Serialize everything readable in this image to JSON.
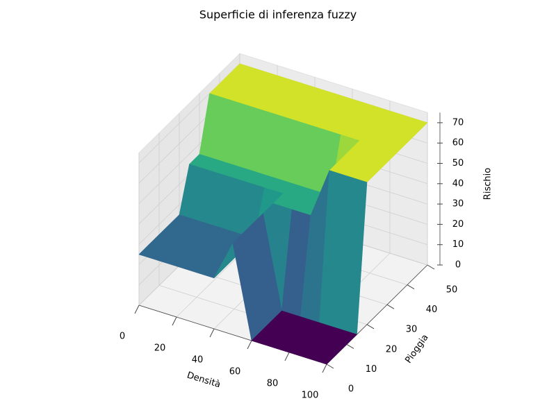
{
  "chart_data": {
    "type": "surface",
    "title": "Superficie di inferenza fuzzy",
    "xlabel": "Densità",
    "ylabel": "Pioggia",
    "zlabel": "Rischio",
    "colormap": "viridis",
    "x": [
      0,
      10,
      20,
      30,
      40,
      50,
      60,
      70,
      80,
      90,
      100
    ],
    "y": [
      0,
      5,
      10,
      15,
      20,
      25,
      30,
      35,
      40,
      45,
      50
    ],
    "z": [
      [
        25,
        25,
        25,
        25,
        25,
        45,
        0,
        0,
        0,
        0,
        0
      ],
      [
        25,
        25,
        25,
        25,
        25,
        45,
        0,
        0,
        0,
        0,
        0
      ],
      [
        25,
        25,
        25,
        25,
        25,
        45,
        0,
        0,
        0,
        0,
        0
      ],
      [
        25,
        25,
        25,
        25,
        25,
        45,
        0,
        0,
        0,
        0,
        0
      ],
      [
        25,
        25,
        25,
        25,
        25,
        45,
        45,
        45,
        70,
        70,
        70
      ],
      [
        45,
        45,
        45,
        45,
        45,
        45,
        45,
        45,
        70,
        70,
        70
      ],
      [
        45,
        45,
        45,
        45,
        45,
        45,
        45,
        45,
        70,
        70,
        70
      ],
      [
        70,
        70,
        70,
        70,
        70,
        70,
        70,
        70,
        70,
        70,
        70
      ],
      [
        70,
        70,
        70,
        70,
        70,
        70,
        70,
        70,
        70,
        70,
        70
      ],
      [
        70,
        70,
        70,
        70,
        70,
        70,
        70,
        70,
        70,
        70,
        70
      ],
      [
        70,
        70,
        70,
        70,
        70,
        70,
        70,
        70,
        70,
        70,
        70
      ]
    ],
    "xlim": [
      0,
      100
    ],
    "ylim": [
      0,
      50
    ],
    "zlim": [
      0,
      75
    ],
    "xticks": [
      0,
      20,
      40,
      60,
      80,
      100
    ],
    "yticks": [
      0,
      10,
      20,
      30,
      40,
      50
    ],
    "zticks": [
      0,
      10,
      20,
      30,
      40,
      50,
      60,
      70
    ],
    "grid": true
  }
}
